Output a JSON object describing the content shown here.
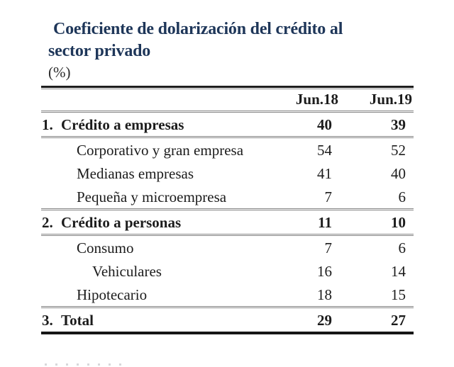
{
  "title": {
    "line1": "Coeficiente de dolarización del crédito al",
    "line2": "sector privado",
    "unit": "(%)"
  },
  "table": {
    "columns": [
      "Jun.18",
      "Jun.19"
    ],
    "rows": [
      {
        "num": "1.",
        "label": "Crédito a empresas",
        "jun18": "40",
        "jun19": "39"
      },
      {
        "label": "Corporativo y gran empresa",
        "jun18": "54",
        "jun19": "52"
      },
      {
        "label": "Medianas empresas",
        "jun18": "41",
        "jun19": "40"
      },
      {
        "label": "Pequeña y microempresa",
        "jun18": "7",
        "jun19": "6"
      },
      {
        "num": "2.",
        "label": "Crédito a personas",
        "jun18": "11",
        "jun19": "10"
      },
      {
        "label": "Consumo",
        "jun18": "7",
        "jun19": "6"
      },
      {
        "label": "Vehiculares",
        "jun18": "16",
        "jun19": "14"
      },
      {
        "label": "Hipotecario",
        "jun18": "18",
        "jun19": "15"
      },
      {
        "num": "3.",
        "label": "Total",
        "jun18": "29",
        "jun19": "27"
      }
    ]
  },
  "colors": {
    "title_navy": "#1e3659",
    "body_text": "#1c1c1c",
    "hairline_gray": "#868686",
    "thick_rule_black": "#161616"
  },
  "chart_data": {
    "type": "table",
    "title": "Coeficiente de dolarización del crédito al sector privado",
    "unit": "%",
    "columns": [
      "",
      "Jun.18",
      "Jun.19"
    ],
    "rows": [
      [
        "1. Crédito a empresas",
        40,
        39
      ],
      [
        "Corporativo y gran empresa",
        54,
        52
      ],
      [
        "Medianas empresas",
        41,
        40
      ],
      [
        "Pequeña y microempresa",
        7,
        6
      ],
      [
        "2. Crédito a personas",
        11,
        10
      ],
      [
        "Consumo",
        7,
        6
      ],
      [
        "Vehiculares",
        16,
        14
      ],
      [
        "Hipotecario",
        18,
        15
      ],
      [
        "3. Total",
        29,
        27
      ]
    ]
  }
}
